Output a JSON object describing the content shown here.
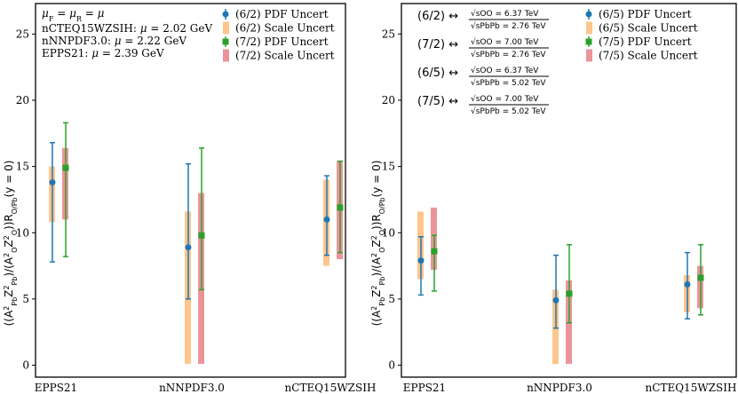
{
  "chart_data": [
    {
      "type": "errorbar",
      "panel": "left",
      "ylabel": "((A_Pb^2 Z_Pb^2)/(A_O^2 Z_O^2)) R_O/Pb(y = 0)",
      "ylim": [
        -0.9,
        27.3
      ],
      "yticks": [
        "0",
        "5",
        "10",
        "15",
        "20",
        "25"
      ],
      "categories": [
        "EPPS21",
        "nNNPDF3.0",
        "nCTEQ15WZSIH"
      ],
      "annotations": [
        "μF = μR = μ",
        "nCTEQ15WZSIH: μ = 2.02 GeV",
        "nNNPDF3.0: μ = 2.22 GeV",
        "EPPS21: μ = 2.39 GeV"
      ],
      "series": [
        {
          "name": "(6/2) PDF Uncert",
          "kind": "pdf",
          "color": "#1f77b4",
          "values": [
            13.8,
            8.9,
            11.0
          ],
          "low": [
            7.8,
            5.0,
            8.3
          ],
          "high": [
            16.8,
            15.2,
            14.3
          ]
        },
        {
          "name": "(6/2) Scale Uncert",
          "kind": "scale",
          "color": "#ffbb78",
          "center": [
            13.8,
            8.9,
            11.0
          ],
          "low": [
            10.8,
            0.1,
            7.5
          ],
          "high": [
            15.0,
            11.6,
            14.0
          ]
        },
        {
          "name": "(7/2) PDF Uncert",
          "kind": "pdf",
          "color": "#2ca02c",
          "values": [
            14.9,
            9.8,
            11.9
          ],
          "low": [
            8.2,
            5.7,
            8.5
          ],
          "high": [
            18.3,
            16.4,
            15.4
          ]
        },
        {
          "name": "(7/2) Scale Uncert",
          "kind": "scale",
          "color": "#e8828a",
          "center": [
            14.9,
            9.8,
            11.9
          ],
          "low": [
            11.0,
            0.1,
            8.0
          ],
          "high": [
            16.4,
            13.0,
            15.4
          ]
        }
      ]
    },
    {
      "type": "errorbar",
      "panel": "right",
      "ylabel": "((A_Pb^2 Z_Pb^2)/(A_O^2 Z_O^2)) R_O/Pb(y = 0)",
      "ylim": [
        -0.9,
        27.3
      ],
      "yticks": [
        "0",
        "5",
        "10",
        "15",
        "20",
        "25"
      ],
      "categories": [
        "EPPS21",
        "nNNPDF3.0",
        "nCTEQ15WZSIH"
      ],
      "annotations": [
        {
          "label": "(6/2) ↔",
          "num": "√sOO = 6.37 TeV",
          "den": "√sPbPb = 2.76 TeV"
        },
        {
          "label": "(7/2) ↔",
          "num": "√sOO = 7.00 TeV",
          "den": "√sPbPb = 2.76 TeV"
        },
        {
          "label": "(6/5) ↔",
          "num": "√sOO = 6.37 TeV",
          "den": "√sPbPb = 5.02 TeV"
        },
        {
          "label": "(7/5) ↔",
          "num": "√sOO = 7.00 TeV",
          "den": "√sPbPb = 5.02 TeV"
        }
      ],
      "series": [
        {
          "name": "(6/5) PDF Uncert",
          "kind": "pdf",
          "color": "#1f77b4",
          "values": [
            7.9,
            4.9,
            6.1
          ],
          "low": [
            5.3,
            2.8,
            3.5
          ],
          "high": [
            9.7,
            8.3,
            8.5
          ]
        },
        {
          "name": "(6/5) Scale Uncert",
          "kind": "scale",
          "color": "#ffbb78",
          "center": [
            7.9,
            4.9,
            6.1
          ],
          "low": [
            6.5,
            0.1,
            4.0
          ],
          "high": [
            11.6,
            5.7,
            6.8
          ]
        },
        {
          "name": "(7/5) PDF Uncert",
          "kind": "pdf",
          "color": "#2ca02c",
          "values": [
            8.6,
            5.4,
            6.6
          ],
          "low": [
            5.6,
            3.2,
            3.8
          ],
          "high": [
            9.8,
            9.1,
            9.1
          ]
        },
        {
          "name": "(7/5) Scale Uncert",
          "kind": "scale",
          "color": "#e8828a",
          "center": [
            8.6,
            5.4,
            6.6
          ],
          "low": [
            7.2,
            0.1,
            4.3
          ],
          "high": [
            11.9,
            6.4,
            7.5
          ]
        }
      ]
    }
  ]
}
